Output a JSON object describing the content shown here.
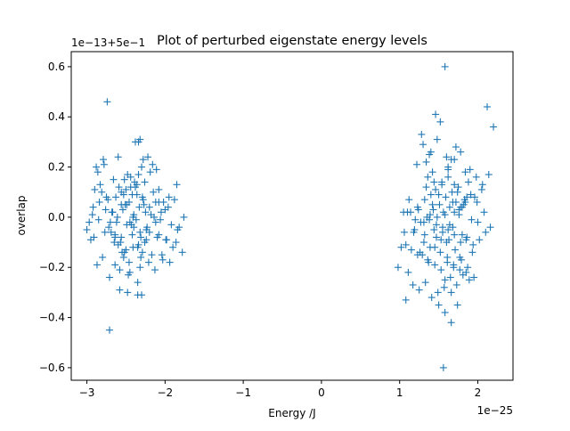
{
  "chart_data": {
    "type": "scatter",
    "title": "Plot of perturbed eigenstate energy levels",
    "xlabel": "Energy /J",
    "ylabel": "overlap",
    "x_offset_text": "1e−25",
    "y_offset_text": "1e−13+5e−1",
    "xlim": [
      -3.2,
      2.45
    ],
    "ylim": [
      -0.65,
      0.66
    ],
    "x_ticks": [
      -3,
      -2,
      -1,
      0,
      1,
      2
    ],
    "x_tick_labels": [
      "−3",
      "−2",
      "−1",
      "0",
      "1",
      "2"
    ],
    "y_ticks": [
      -0.6,
      -0.4,
      -0.2,
      0.0,
      0.2,
      0.4,
      0.6
    ],
    "y_tick_labels": [
      "−0.6",
      "−0.4",
      "−0.2",
      "0.0",
      "0.2",
      "0.4",
      "0.6"
    ],
    "marker": "+",
    "grid": false,
    "series": [
      {
        "color": "#1f77b4",
        "x": [
          -2.74,
          -2.71,
          -2.78,
          -2.88,
          -2.92,
          -2.6,
          -2.58,
          -2.48,
          -2.45,
          -2.38,
          -2.32,
          -2.28,
          -2.22,
          -2.15,
          -2.08,
          -2.02,
          -1.95,
          -1.85,
          -1.78,
          -1.98,
          -2.1,
          -2.2,
          -2.32,
          -2.46,
          -2.55,
          -2.65,
          -2.72,
          -2.8,
          -2.87,
          -2.95,
          -3.0,
          -2.83,
          -2.75,
          -2.68,
          -2.62,
          -2.52,
          -2.44,
          -2.36,
          -2.27,
          -2.18,
          -2.06,
          -1.92,
          -1.82,
          -1.76,
          -1.88,
          -2.0,
          -2.12,
          -2.24,
          -2.34,
          -2.42,
          -2.5,
          -2.57,
          -2.64,
          -2.7,
          -2.77,
          -2.85,
          -2.93,
          -2.97,
          -2.9,
          -2.81,
          -2.73,
          -2.66,
          -2.59,
          -2.51,
          -2.43,
          -2.35,
          -2.26,
          -2.17,
          -2.08,
          -1.99,
          -1.9,
          -1.84,
          -1.96,
          -2.05,
          -2.14,
          -2.23,
          -2.31,
          -2.4,
          -2.49,
          -2.56,
          -2.63,
          -2.69,
          -2.76,
          -2.84,
          -2.91,
          -2.86,
          -2.79,
          -2.71,
          -2.64,
          -2.58,
          -2.53,
          -2.47,
          -2.41,
          -2.35,
          -2.29,
          -2.21,
          -2.13,
          -2.04,
          -1.94,
          -1.86,
          -2.26,
          -2.3,
          -2.34,
          -2.38,
          -2.42,
          -2.46,
          -2.5,
          -2.54,
          -2.37,
          -2.33,
          -2.29,
          -2.25,
          -2.41,
          -2.45,
          -2.49,
          -2.53,
          -2.61,
          -2.67,
          -2.39,
          -2.31,
          -2.19,
          -2.11,
          -2.03,
          -2.16,
          -2.44,
          -2.52,
          -2.6,
          -2.48,
          -2.36,
          -2.24,
          -2.28,
          -2.32,
          -2.4,
          -2.56,
          -2.64,
          -2.2,
          -2.12,
          -2.08,
          -2.35,
          -2.3,
          -2.34,
          -2.56,
          1.58,
          1.56,
          1.46,
          1.4,
          1.28,
          1.22,
          1.12,
          1.05,
          0.98,
          1.08,
          1.18,
          1.3,
          1.38,
          1.48,
          1.52,
          1.6,
          1.66,
          1.72,
          1.78,
          1.84,
          1.9,
          1.98,
          2.06,
          2.12,
          2.2,
          2.14,
          2.05,
          1.96,
          1.88,
          1.8,
          1.74,
          1.68,
          1.62,
          1.54,
          1.44,
          1.34,
          1.24,
          1.14,
          1.06,
          1.02,
          1.1,
          1.2,
          1.32,
          1.42,
          1.5,
          1.58,
          1.64,
          1.7,
          1.76,
          1.82,
          1.86,
          1.92,
          2.0,
          2.08,
          2.16,
          2.1,
          2.02,
          1.94,
          1.86,
          1.78,
          1.7,
          1.62,
          1.55,
          1.47,
          1.39,
          1.31,
          1.23,
          1.15,
          1.08,
          1.26,
          1.36,
          1.45,
          1.53,
          1.61,
          1.69,
          1.77,
          1.85,
          1.93,
          1.89,
          1.81,
          1.73,
          1.65,
          1.57,
          1.49,
          1.41,
          1.33,
          1.25,
          1.17,
          1.11,
          1.19,
          1.27,
          1.35,
          1.43,
          1.51,
          1.59,
          1.67,
          1.75,
          1.83,
          1.91,
          1.99,
          1.95,
          1.87,
          1.79,
          1.71,
          1.63,
          1.55,
          1.47,
          1.39,
          1.31,
          1.23,
          1.29,
          1.37,
          1.45,
          1.53,
          1.61,
          1.69,
          1.77,
          1.85,
          1.48,
          1.56,
          1.64,
          1.72,
          1.8,
          1.5,
          1.58,
          1.66,
          1.74,
          1.42,
          1.34,
          1.46,
          1.54,
          1.62,
          1.7,
          1.78,
          1.52,
          1.6,
          1.68,
          1.76,
          1.84,
          1.44,
          1.36,
          1.4,
          1.32,
          1.38,
          1.62,
          1.7,
          1.58,
          1.66
        ],
        "y": [
          0.46,
          -0.45,
          0.21,
          0.2,
          0.04,
          0.24,
          -0.29,
          -0.3,
          -0.22,
          0.3,
          0.31,
          0.23,
          0.24,
          0.1,
          0.11,
          0.06,
          0.08,
          0.13,
          -0.14,
          -0.09,
          -0.08,
          -0.06,
          -0.2,
          -0.18,
          -0.14,
          -0.1,
          -0.04,
          -0.16,
          -0.19,
          -0.09,
          -0.05,
          0.13,
          0.08,
          0.02,
          -0.02,
          0.15,
          0.12,
          0.09,
          0.05,
          0.01,
          -0.01,
          -0.03,
          -0.04,
          0.0,
          0.07,
          0.03,
          0.06,
          -0.05,
          -0.11,
          -0.07,
          -0.13,
          -0.1,
          -0.08,
          -0.02,
          -0.06,
          -0.01,
          0.01,
          -0.02,
          0.11,
          0.1,
          0.07,
          0.15,
          0.12,
          0.05,
          -0.03,
          -0.12,
          -0.1,
          -0.15,
          -0.07,
          -0.09,
          -0.12,
          -0.05,
          0.04,
          0.02,
          0.0,
          -0.04,
          -0.08,
          0.01,
          -0.03,
          0.05,
          0.08,
          -0.06,
          0.03,
          0.06,
          -0.08,
          0.18,
          0.23,
          -0.24,
          -0.19,
          -0.21,
          -0.16,
          -0.23,
          -0.12,
          -0.26,
          -0.14,
          -0.18,
          -0.21,
          -0.15,
          -0.18,
          -0.1,
          0.14,
          0.2,
          0.17,
          0.12,
          0.09,
          0.06,
          0.11,
          0.03,
          -0.01,
          0.04,
          0.08,
          0.02,
          0.0,
          -0.02,
          0.05,
          0.09,
          0.0,
          0.02,
          0.14,
          -0.16,
          0.18,
          0.19,
          -0.17,
          0.21,
          0.16,
          -0.14,
          -0.11,
          0.17,
          0.13,
          -0.09,
          0.07,
          -0.06,
          -0.04,
          0.1,
          -0.07,
          0.04,
          -0.02,
          0.06,
          -0.31,
          -0.31,
          0.3,
          -0.08,
          0.6,
          -0.6,
          0.41,
          0.26,
          0.33,
          0.21,
          0.07,
          0.02,
          -0.2,
          -0.33,
          -0.06,
          0.29,
          0.25,
          0.31,
          0.38,
          0.24,
          0.23,
          0.28,
          0.26,
          0.18,
          0.19,
          0.16,
          0.13,
          0.44,
          0.36,
          0.17,
          0.11,
          0.08,
          0.14,
          0.04,
          0.1,
          0.06,
          0.16,
          0.13,
          0.14,
          0.12,
          0.03,
          0.02,
          -0.06,
          -0.12,
          0.02,
          -0.01,
          0.07,
          0.05,
          0.09,
          0.01,
          -0.03,
          0.02,
          0.03,
          0.05,
          0.08,
          -0.01,
          -0.02,
          0.02,
          -0.04,
          -0.06,
          -0.09,
          -0.11,
          -0.08,
          -0.1,
          -0.07,
          -0.05,
          -0.04,
          -0.08,
          -0.12,
          -0.1,
          -0.15,
          -0.13,
          -0.11,
          -0.14,
          -0.17,
          -0.19,
          -0.21,
          -0.18,
          -0.2,
          -0.16,
          -0.22,
          -0.14,
          -0.25,
          -0.23,
          -0.27,
          -0.24,
          -0.28,
          -0.3,
          -0.32,
          -0.26,
          -0.29,
          -0.27,
          -0.22,
          -0.05,
          -0.02,
          0.0,
          0.03,
          0.05,
          0.08,
          0.1,
          0.12,
          0.07,
          0.09,
          0.06,
          -0.24,
          -0.2,
          -0.17,
          -0.13,
          -0.09,
          -0.06,
          -0.03,
          0.01,
          -0.02,
          0.04,
          -0.15,
          -0.18,
          -0.12,
          -0.09,
          -0.16,
          -0.19,
          -0.21,
          -0.09,
          0.0,
          0.02,
          0.04,
          0.06,
          -0.07,
          -0.35,
          -0.38,
          -0.42,
          -0.35,
          0.18,
          0.22,
          0.11,
          0.14,
          0.19,
          0.13,
          0.04,
          -0.14,
          -0.1,
          -0.04,
          0.01,
          0.06,
          -0.05,
          0.16,
          0.09,
          -0.07,
          -0.01,
          0.2,
          0.23,
          -0.25,
          -0.3
        ]
      }
    ]
  }
}
